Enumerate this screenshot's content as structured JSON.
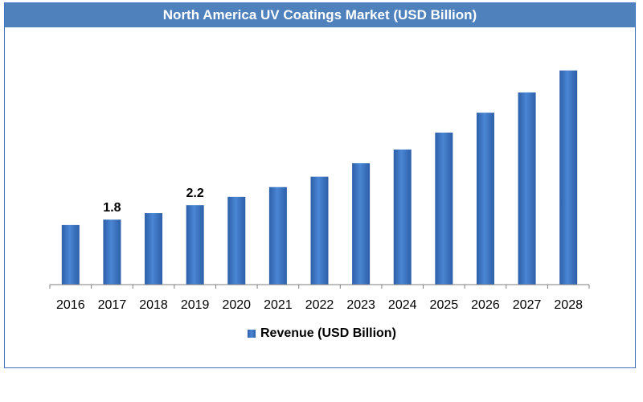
{
  "chart_data": {
    "type": "bar",
    "title": "North America UV Coatings Market (USD Billion)",
    "categories": [
      "2016",
      "2017",
      "2018",
      "2019",
      "2020",
      "2021",
      "2022",
      "2023",
      "2024",
      "2025",
      "2026",
      "2027",
      "2028"
    ],
    "series": [
      {
        "name": "Revenue (USD Billion)",
        "values": [
          1.65,
          1.8,
          1.98,
          2.2,
          2.43,
          2.7,
          2.99,
          3.36,
          3.74,
          4.21,
          4.76,
          5.32,
          5.93
        ]
      }
    ],
    "data_labels": {
      "2017": "1.8",
      "2019": "2.2"
    },
    "xlabel": "",
    "ylabel": "",
    "ylim": [
      0,
      6.1
    ],
    "grid": false,
    "legend": "bottom",
    "colors": {
      "bar": "#4a86d4",
      "bar_dark": "#2d5fa8",
      "title_bg": "#4f81bd",
      "border": "#4472c4"
    }
  }
}
